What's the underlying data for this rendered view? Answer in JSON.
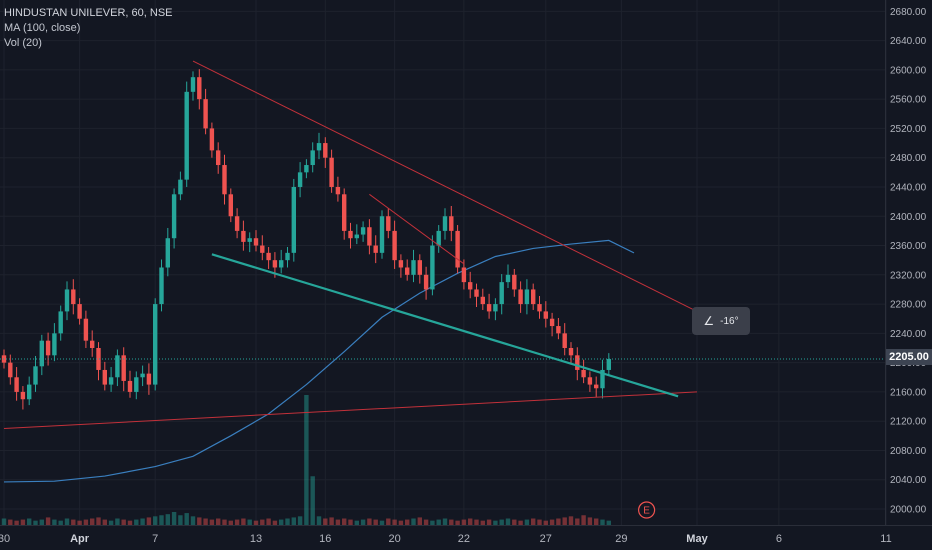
{
  "legend": {
    "title": "HINDUSTAN UNILEVER, 60, NSE",
    "ma": "MA (100, close)",
    "vol": "Vol (20)"
  },
  "angle_tool": {
    "icon": "angle-icon",
    "label": "-16°"
  },
  "earnings_marker": "E",
  "colors": {
    "background": "#131722",
    "up": "#26a69a",
    "down": "#ef5350",
    "ma_line": "#3a7fbf",
    "trend_red": "#c2313a",
    "trend_green": "#26a69a",
    "price_line": "#26a69a"
  },
  "chart_data": {
    "type": "candlestick",
    "title": "HINDUSTAN UNILEVER, 60, NSE",
    "ylim": [
      1985,
      2690
    ],
    "y_ticks": [
      2680,
      2640,
      2600,
      2560,
      2520,
      2480,
      2440,
      2400,
      2360,
      2320,
      2280,
      2240,
      2200,
      2160,
      2120,
      2080,
      2040,
      2000
    ],
    "current_price": 2205.0,
    "x_tick_labels": [
      "30",
      "Apr",
      "7",
      "13",
      "16",
      "20",
      "22",
      "27",
      "29",
      "May",
      "6",
      "11"
    ],
    "x_tick_index": [
      0,
      12,
      24,
      40,
      51,
      62,
      73,
      86,
      98,
      110,
      123,
      140
    ],
    "month_labels": [
      "Apr",
      "May"
    ],
    "closes": [
      2200,
      2180,
      2160,
      2150,
      2170,
      2195,
      2230,
      2210,
      2240,
      2270,
      2300,
      2280,
      2260,
      2230,
      2220,
      2190,
      2170,
      2180,
      2210,
      2175,
      2160,
      2180,
      2185,
      2170,
      2280,
      2330,
      2370,
      2430,
      2450,
      2570,
      2590,
      2560,
      2520,
      2490,
      2470,
      2430,
      2400,
      2380,
      2365,
      2370,
      2360,
      2350,
      2340,
      2330,
      2340,
      2350,
      2440,
      2460,
      2470,
      2490,
      2500,
      2480,
      2440,
      2430,
      2380,
      2370,
      2375,
      2385,
      2360,
      2350,
      2400,
      2380,
      2340,
      2330,
      2320,
      2340,
      2320,
      2300,
      2360,
      2380,
      2400,
      2380,
      2330,
      2310,
      2300,
      2290,
      2280,
      2270,
      2280,
      2310,
      2320,
      2300,
      2280,
      2300,
      2280,
      2270,
      2260,
      2250,
      2240,
      2220,
      2210,
      2190,
      2180,
      2170,
      2165,
      2190,
      2205
    ],
    "volume": [
      6,
      5,
      4,
      5,
      6,
      4,
      5,
      7,
      5,
      4,
      6,
      5,
      4,
      5,
      6,
      7,
      5,
      4,
      6,
      5,
      4,
      5,
      6,
      7,
      8,
      9,
      10,
      12,
      9,
      11,
      8,
      7,
      6,
      5,
      6,
      5,
      4,
      5,
      6,
      5,
      4,
      5,
      6,
      4,
      5,
      6,
      7,
      8,
      120,
      45,
      8,
      6,
      7,
      5,
      6,
      5,
      4,
      5,
      6,
      5,
      4,
      6,
      5,
      4,
      5,
      6,
      7,
      5,
      4,
      5,
      6,
      5,
      4,
      5,
      6,
      5,
      4,
      5,
      4,
      5,
      6,
      5,
      4,
      5,
      6,
      5,
      4,
      5,
      6,
      7,
      8,
      6,
      9,
      7,
      6,
      5,
      4
    ],
    "ma_line": [
      [
        0,
        2037
      ],
      [
        8,
        2038
      ],
      [
        16,
        2045
      ],
      [
        24,
        2058
      ],
      [
        30,
        2072
      ],
      [
        36,
        2100
      ],
      [
        42,
        2130
      ],
      [
        48,
        2170
      ],
      [
        54,
        2215
      ],
      [
        60,
        2262
      ],
      [
        66,
        2295
      ],
      [
        72,
        2322
      ],
      [
        78,
        2345
      ],
      [
        84,
        2356
      ],
      [
        90,
        2362
      ],
      [
        96,
        2367
      ],
      [
        100,
        2350
      ]
    ],
    "trendlines": [
      {
        "color": "red",
        "from": [
          30,
          2612
        ],
        "to": [
          110,
          2270
        ]
      },
      {
        "color": "red",
        "from": [
          58,
          2430
        ],
        "to": [
          73,
          2335
        ]
      },
      {
        "color": "red",
        "from": [
          0,
          2110
        ],
        "to": [
          110,
          2160
        ]
      },
      {
        "color": "green",
        "from": [
          33,
          2348
        ],
        "to": [
          107,
          2154
        ]
      }
    ]
  }
}
